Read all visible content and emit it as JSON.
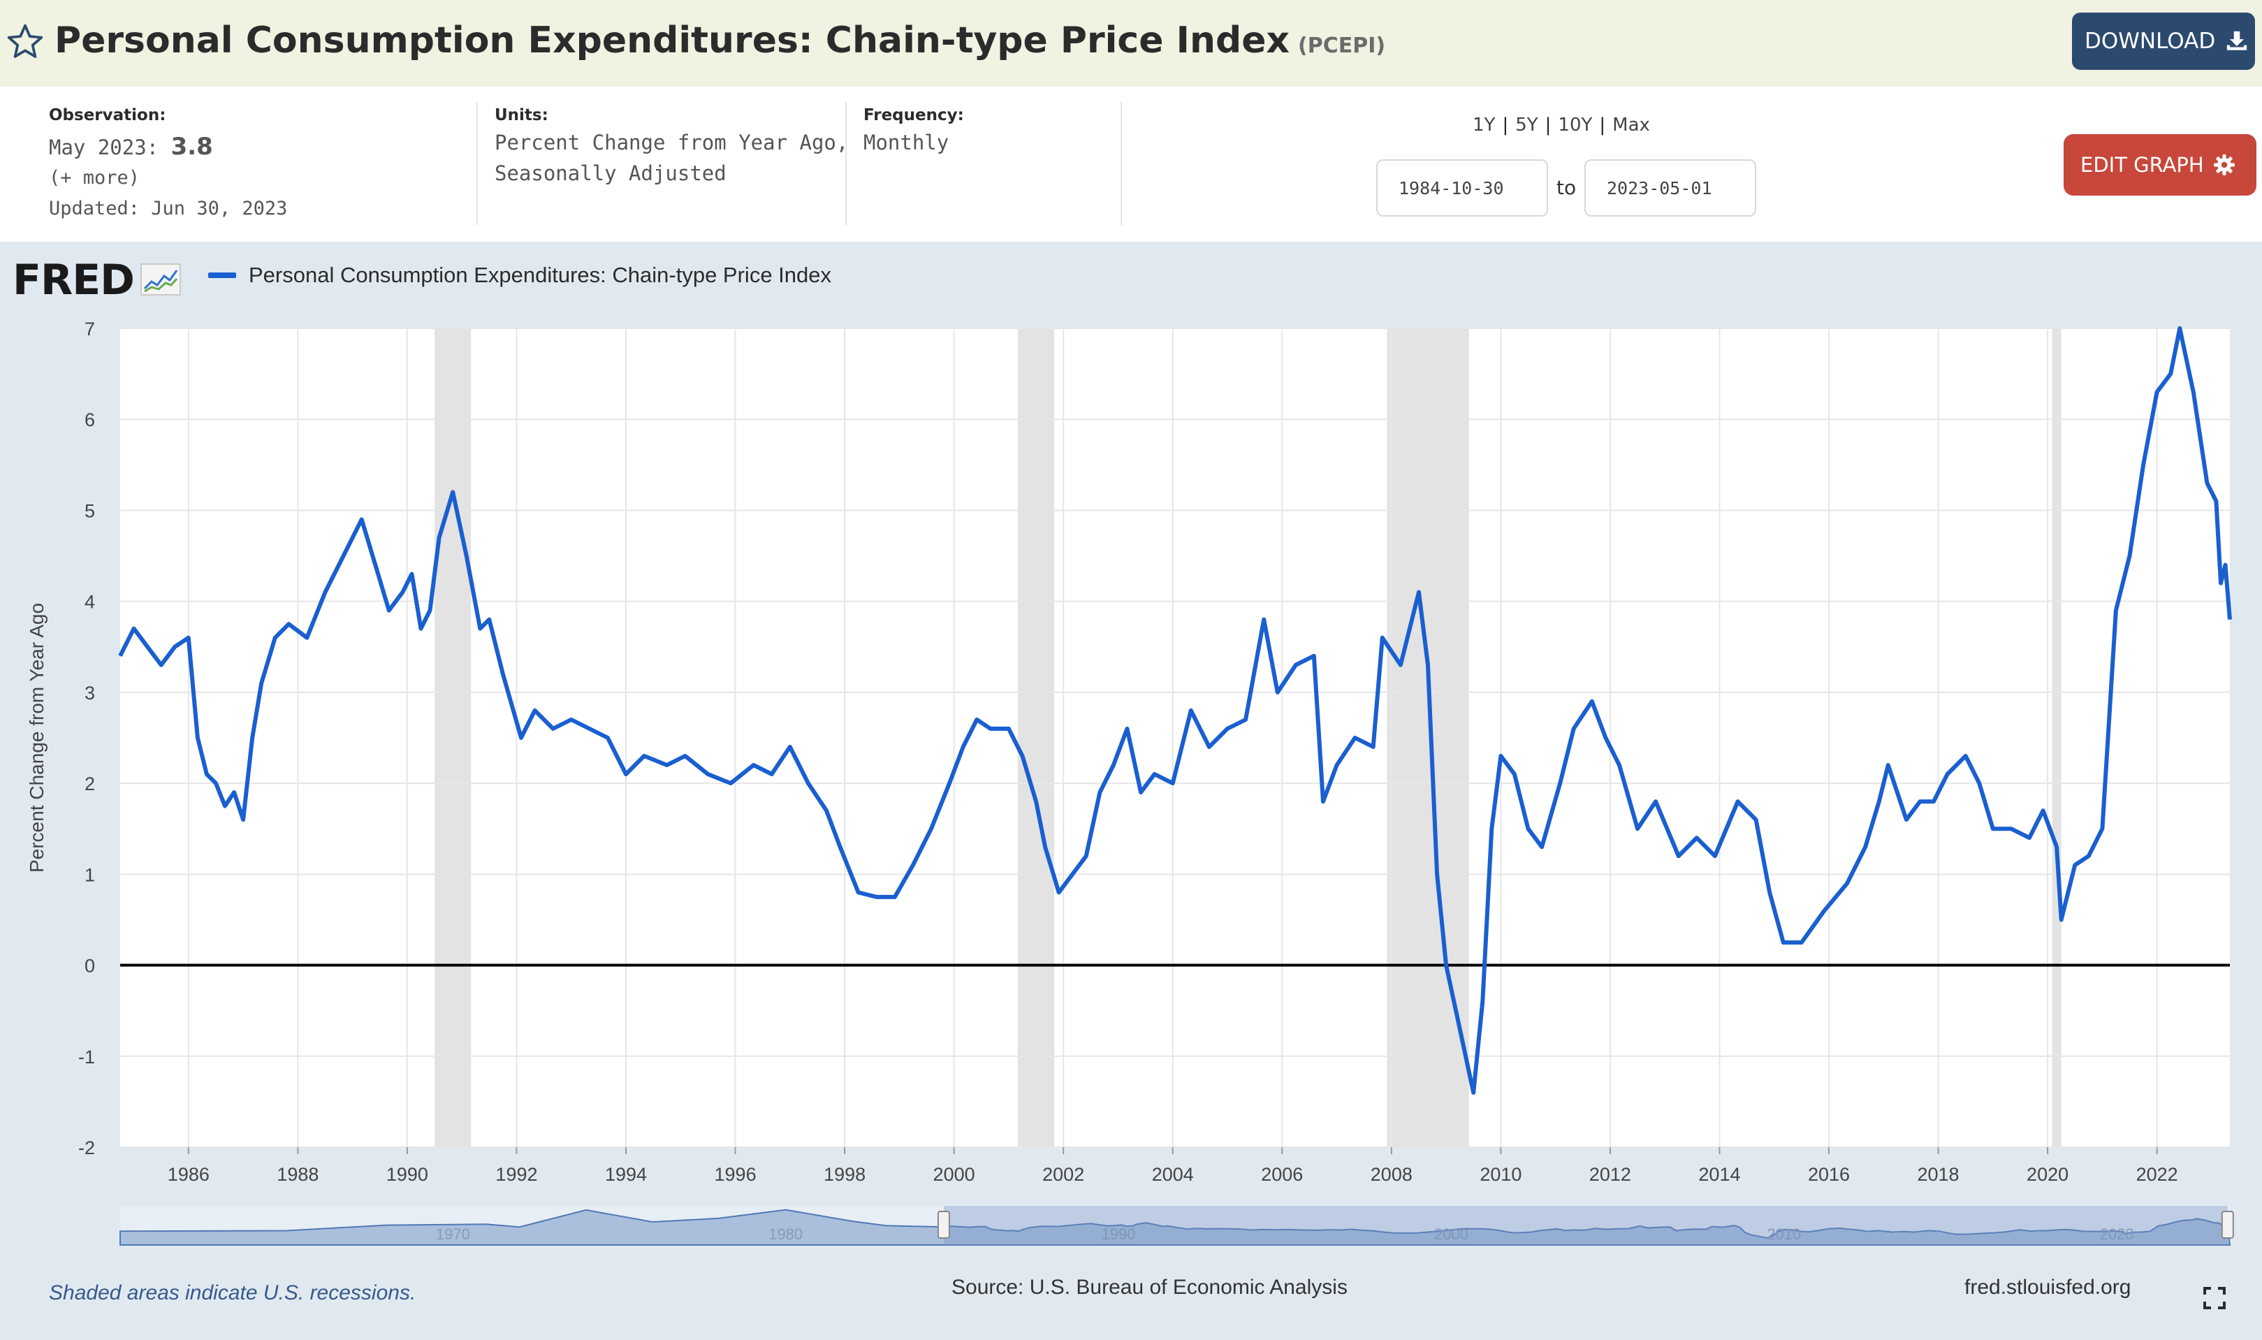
{
  "header": {
    "title": "Personal Consumption Expenditures: Chain-type Price Index",
    "series_id": "(PCEPI)",
    "download_label": "DOWNLOAD",
    "icons": {
      "favorite": "star-icon",
      "download": "download-icon"
    }
  },
  "info": {
    "observation": {
      "label": "Observation:",
      "date": "May 2023:",
      "value": "3.8",
      "more": "(+ more)",
      "updated": "Updated: Jun 30, 2023"
    },
    "units": {
      "label": "Units:",
      "line1": "Percent Change from Year Ago,",
      "line2": "Seasonally Adjusted"
    },
    "frequency": {
      "label": "Frequency:",
      "value": "Monthly"
    },
    "range_links": [
      "1Y",
      "5Y",
      "10Y",
      "Max"
    ],
    "date_start": "1984-10-30",
    "date_to": "to",
    "date_end": "2023-05-01",
    "edit_graph_label": "EDIT GRAPH",
    "edit_graph_icon": "gear-icon"
  },
  "graph": {
    "logo_text": "FRED",
    "footnote": "Shaded areas indicate U.S. recessions.",
    "source": "Source: U.S. Bureau of Economic Analysis",
    "url": "fred.stlouisfed.org",
    "navigator_labels": [
      "1970",
      "1980",
      "1990",
      "2000",
      "2010",
      "2020"
    ]
  },
  "chart_data": {
    "type": "line",
    "ylabel": "Percent Change from Year Ago",
    "ylim": [
      -2,
      7
    ],
    "yticks": [
      -2,
      -1,
      0,
      1,
      2,
      3,
      4,
      5,
      6,
      7
    ],
    "xlim": [
      "1984-10",
      "2023-05"
    ],
    "xticks": [
      "1986",
      "1988",
      "1990",
      "1992",
      "1994",
      "1996",
      "1998",
      "2000",
      "2002",
      "2004",
      "2006",
      "2008",
      "2010",
      "2012",
      "2014",
      "2016",
      "2018",
      "2020",
      "2022"
    ],
    "grid": true,
    "legend": "top-left",
    "colors": {
      "line": "#1a5fd0",
      "recession": "#e3e3e3",
      "zero_line": "#000000"
    },
    "recessions": [
      [
        "1990-07",
        "1991-03"
      ],
      [
        "2001-03",
        "2001-11"
      ],
      [
        "2007-12",
        "2009-06"
      ],
      [
        "2020-02",
        "2020-04"
      ]
    ],
    "series": [
      {
        "name": "Personal Consumption Expenditures: Chain-type Price Index",
        "points": [
          [
            "1984-10",
            3.4
          ],
          [
            "1985-01",
            3.7
          ],
          [
            "1985-04",
            3.5
          ],
          [
            "1985-07",
            3.3
          ],
          [
            "1985-10",
            3.5
          ],
          [
            "1986-01",
            3.6
          ],
          [
            "1986-03",
            2.5
          ],
          [
            "1986-05",
            2.1
          ],
          [
            "1986-07",
            2.0
          ],
          [
            "1986-09",
            1.75
          ],
          [
            "1986-11",
            1.9
          ],
          [
            "1987-01",
            1.6
          ],
          [
            "1987-03",
            2.5
          ],
          [
            "1987-05",
            3.1
          ],
          [
            "1987-08",
            3.6
          ],
          [
            "1987-11",
            3.75
          ],
          [
            "1988-03",
            3.6
          ],
          [
            "1988-07",
            4.1
          ],
          [
            "1988-11",
            4.5
          ],
          [
            "1989-03",
            4.9
          ],
          [
            "1989-06",
            4.4
          ],
          [
            "1989-09",
            3.9
          ],
          [
            "1989-12",
            4.1
          ],
          [
            "1990-02",
            4.3
          ],
          [
            "1990-04",
            3.7
          ],
          [
            "1990-06",
            3.9
          ],
          [
            "1990-08",
            4.7
          ],
          [
            "1990-11",
            5.2
          ],
          [
            "1991-02",
            4.5
          ],
          [
            "1991-05",
            3.7
          ],
          [
            "1991-07",
            3.8
          ],
          [
            "1991-10",
            3.2
          ],
          [
            "1992-02",
            2.5
          ],
          [
            "1992-05",
            2.8
          ],
          [
            "1992-09",
            2.6
          ],
          [
            "1993-01",
            2.7
          ],
          [
            "1993-05",
            2.6
          ],
          [
            "1993-09",
            2.5
          ],
          [
            "1994-01",
            2.1
          ],
          [
            "1994-05",
            2.3
          ],
          [
            "1994-10",
            2.2
          ],
          [
            "1995-02",
            2.3
          ],
          [
            "1995-07",
            2.1
          ],
          [
            "1995-12",
            2.0
          ],
          [
            "1996-05",
            2.2
          ],
          [
            "1996-09",
            2.1
          ],
          [
            "1997-01",
            2.4
          ],
          [
            "1997-05",
            2.0
          ],
          [
            "1997-09",
            1.7
          ],
          [
            "1997-12",
            1.3
          ],
          [
            "1998-04",
            0.8
          ],
          [
            "1998-08",
            0.75
          ],
          [
            "1998-12",
            0.75
          ],
          [
            "1999-04",
            1.1
          ],
          [
            "1999-08",
            1.5
          ],
          [
            "1999-12",
            2.0
          ],
          [
            "2000-03",
            2.4
          ],
          [
            "2000-06",
            2.7
          ],
          [
            "2000-09",
            2.6
          ],
          [
            "2001-01",
            2.6
          ],
          [
            "2001-04",
            2.3
          ],
          [
            "2001-07",
            1.8
          ],
          [
            "2001-09",
            1.3
          ],
          [
            "2001-12",
            0.8
          ],
          [
            "2002-03",
            1.0
          ],
          [
            "2002-06",
            1.2
          ],
          [
            "2002-09",
            1.9
          ],
          [
            "2002-12",
            2.2
          ],
          [
            "2003-03",
            2.6
          ],
          [
            "2003-06",
            1.9
          ],
          [
            "2003-09",
            2.1
          ],
          [
            "2004-01",
            2.0
          ],
          [
            "2004-05",
            2.8
          ],
          [
            "2004-09",
            2.4
          ],
          [
            "2005-01",
            2.6
          ],
          [
            "2005-05",
            2.7
          ],
          [
            "2005-09",
            3.8
          ],
          [
            "2005-12",
            3.0
          ],
          [
            "2006-04",
            3.3
          ],
          [
            "2006-08",
            3.4
          ],
          [
            "2006-10",
            1.8
          ],
          [
            "2007-01",
            2.2
          ],
          [
            "2007-05",
            2.5
          ],
          [
            "2007-09",
            2.4
          ],
          [
            "2007-11",
            3.6
          ],
          [
            "2008-03",
            3.3
          ],
          [
            "2008-07",
            4.1
          ],
          [
            "2008-09",
            3.3
          ],
          [
            "2008-11",
            1.0
          ],
          [
            "2009-01",
            0.0
          ],
          [
            "2009-04",
            -0.7
          ],
          [
            "2009-07",
            -1.4
          ],
          [
            "2009-09",
            -0.4
          ],
          [
            "2009-11",
            1.5
          ],
          [
            "2010-01",
            2.3
          ],
          [
            "2010-04",
            2.1
          ],
          [
            "2010-07",
            1.5
          ],
          [
            "2010-10",
            1.3
          ],
          [
            "2011-02",
            2.0
          ],
          [
            "2011-05",
            2.6
          ],
          [
            "2011-09",
            2.9
          ],
          [
            "2011-12",
            2.5
          ],
          [
            "2012-03",
            2.2
          ],
          [
            "2012-07",
            1.5
          ],
          [
            "2012-11",
            1.8
          ],
          [
            "2013-04",
            1.2
          ],
          [
            "2013-08",
            1.4
          ],
          [
            "2013-12",
            1.2
          ],
          [
            "2014-05",
            1.8
          ],
          [
            "2014-09",
            1.6
          ],
          [
            "2014-12",
            0.8
          ],
          [
            "2015-03",
            0.25
          ],
          [
            "2015-07",
            0.25
          ],
          [
            "2015-12",
            0.6
          ],
          [
            "2016-05",
            0.9
          ],
          [
            "2016-09",
            1.3
          ],
          [
            "2016-12",
            1.8
          ],
          [
            "2017-02",
            2.2
          ],
          [
            "2017-06",
            1.6
          ],
          [
            "2017-09",
            1.8
          ],
          [
            "2017-12",
            1.8
          ],
          [
            "2018-03",
            2.1
          ],
          [
            "2018-07",
            2.3
          ],
          [
            "2018-10",
            2.0
          ],
          [
            "2019-01",
            1.5
          ],
          [
            "2019-05",
            1.5
          ],
          [
            "2019-09",
            1.4
          ],
          [
            "2019-12",
            1.7
          ],
          [
            "2020-03",
            1.3
          ],
          [
            "2020-04",
            0.5
          ],
          [
            "2020-07",
            1.1
          ],
          [
            "2020-10",
            1.2
          ],
          [
            "2021-01",
            1.5
          ],
          [
            "2021-04",
            3.9
          ],
          [
            "2021-07",
            4.5
          ],
          [
            "2021-10",
            5.5
          ],
          [
            "2022-01",
            6.3
          ],
          [
            "2022-04",
            6.5
          ],
          [
            "2022-06",
            7.0
          ],
          [
            "2022-09",
            6.3
          ],
          [
            "2022-12",
            5.3
          ],
          [
            "2023-02",
            5.1
          ],
          [
            "2023-03",
            4.2
          ],
          [
            "2023-04",
            4.4
          ],
          [
            "2023-05",
            3.8
          ]
        ]
      }
    ]
  }
}
